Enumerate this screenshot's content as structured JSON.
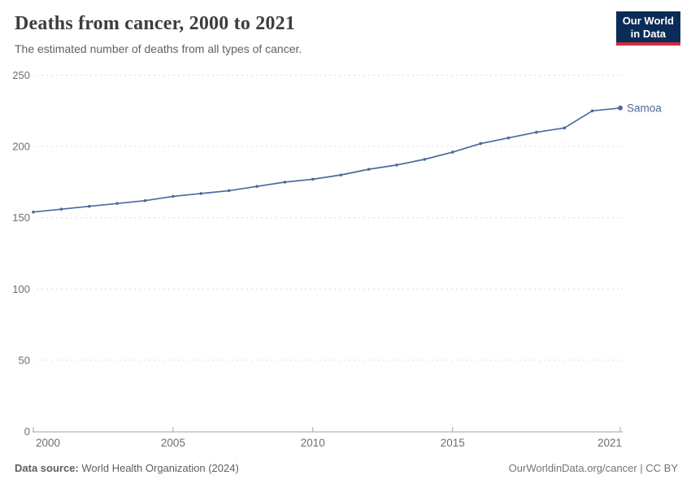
{
  "header": {
    "title": "Deaths from cancer, 2000 to 2021",
    "subtitle": "The estimated number of deaths from all types of cancer."
  },
  "logo": {
    "line1": "Our World",
    "line2": "in Data",
    "bg_color": "#0b2c56",
    "stripe_color": "#cf2e41"
  },
  "chart_data": {
    "type": "line",
    "title": "Deaths from cancer, 2000 to 2021",
    "xlabel": "",
    "ylabel": "",
    "xlim": [
      2000,
      2021
    ],
    "ylim": [
      0,
      250
    ],
    "xticks": [
      2000,
      2005,
      2010,
      2015,
      2021
    ],
    "yticks": [
      0,
      50,
      100,
      150,
      200,
      250
    ],
    "grid": "horizontal-dashed",
    "legend_position": "end-of-line-label",
    "series": [
      {
        "name": "Samoa",
        "color": "#4c6a9c",
        "x": [
          2000,
          2001,
          2002,
          2003,
          2004,
          2005,
          2006,
          2007,
          2008,
          2009,
          2010,
          2011,
          2012,
          2013,
          2014,
          2015,
          2016,
          2017,
          2018,
          2019,
          2020,
          2021
        ],
        "values": [
          154,
          156,
          158,
          160,
          162,
          165,
          167,
          169,
          172,
          175,
          177,
          180,
          184,
          187,
          191,
          196,
          202,
          206,
          210,
          213,
          225,
          227
        ]
      }
    ],
    "colors": {
      "gridline": "#dcdcdc",
      "axis": "#a5a5a5",
      "tick_label": "#6e6e6e"
    }
  },
  "footer": {
    "source_label": "Data source:",
    "source_value": "World Health Organization (2024)",
    "credit": "OurWorldinData.org/cancer | CC BY"
  }
}
